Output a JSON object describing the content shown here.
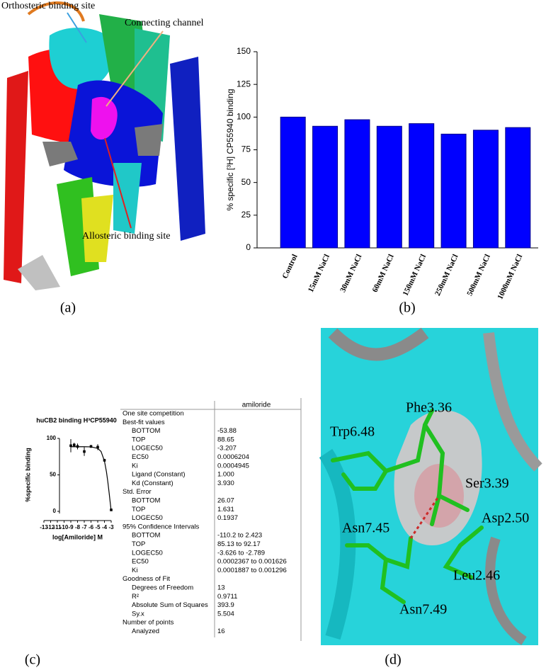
{
  "chart_data": [
    {
      "type": "bar",
      "ylabel": "% specific [³H] CP55940 binding",
      "categories": [
        "Control",
        "15mM NaCl",
        "30mM NaCl",
        "60mM NaCl",
        "150mM NaCl",
        "250mM NaCl",
        "500mM NaCl",
        "1000mM NaCl"
      ],
      "values": [
        100,
        93,
        98,
        93,
        95,
        87,
        90,
        92
      ],
      "color": "#0000ff",
      "ylim": [
        0,
        150
      ],
      "yticks": [
        0,
        25,
        50,
        75,
        100,
        125,
        150
      ]
    },
    {
      "type": "line",
      "title": "huCB2 binding H³CP55940",
      "xlabel": "log[Amiloride] M",
      "ylabel": "%specific binding",
      "xlim": [
        -13,
        -3
      ],
      "xticks": [
        -13,
        -12,
        -11,
        -10,
        -9,
        -8,
        -7,
        -6,
        -5,
        -4,
        -3
      ],
      "ylim": [
        0,
        100
      ],
      "yticks": [
        0,
        50,
        100
      ],
      "color": "#000000",
      "series": [
        {
          "style": "points",
          "x": [
            -9,
            -8.5,
            -8,
            -7,
            -6,
            -5,
            -4,
            -3
          ],
          "values": [
            90,
            91,
            89,
            82,
            89,
            88,
            70,
            2
          ],
          "errors": [
            9,
            3,
            4,
            6,
            2,
            4,
            2,
            1
          ]
        },
        {
          "style": "line",
          "x": [
            -9,
            -8,
            -7,
            -6,
            -5,
            -4.5,
            -4,
            -3.7,
            -3.5,
            -3.3,
            -3.2,
            -3
          ],
          "values": [
            88.6,
            88.6,
            88.6,
            88.4,
            86.4,
            82,
            68.9,
            54,
            40.6,
            25,
            16.7,
            0.7
          ]
        }
      ]
    }
  ],
  "panel_a": {
    "labels": [
      "Orthosteric binding site",
      "Connecting channel",
      "Allosteric binding site"
    ],
    "caption": "(a)"
  },
  "panel_b": {
    "caption": "(b)"
  },
  "panel_c": {
    "caption": "(c)",
    "table": {
      "header": "amiloride",
      "sections": [
        {
          "title": "One site competition",
          "rows": []
        },
        {
          "title": "Best-fit values",
          "rows": [
            [
              "BOTTOM",
              "-53.88"
            ],
            [
              "TOP",
              "88.65"
            ],
            [
              "LOGEC50",
              "-3.207"
            ],
            [
              "EC50",
              "0.0006204"
            ],
            [
              "Ki",
              "0.0004945"
            ],
            [
              "Ligand (Constant)",
              "1.000"
            ],
            [
              "Kd (Constant)",
              "3.930"
            ]
          ]
        },
        {
          "title": "Std. Error",
          "rows": [
            [
              "BOTTOM",
              "26.07"
            ],
            [
              "TOP",
              "1.631"
            ],
            [
              "LOGEC50",
              "0.1937"
            ]
          ]
        },
        {
          "title": "95% Confidence Intervals",
          "rows": [
            [
              "BOTTOM",
              "-110.2 to 2.423"
            ],
            [
              "TOP",
              "85.13 to 92.17"
            ],
            [
              "LOGEC50",
              "-3.626 to -2.789"
            ],
            [
              "EC50",
              "0.0002367 to 0.001626"
            ],
            [
              "Ki",
              "0.0001887 to 0.001296"
            ]
          ]
        },
        {
          "title": "Goodness of Fit",
          "rows": [
            [
              "Degrees of Freedom",
              "13"
            ],
            [
              "R²",
              "0.9711"
            ],
            [
              "Absolute Sum of Squares",
              "393.9"
            ],
            [
              "Sy.x",
              "5.504"
            ]
          ]
        },
        {
          "title": "Number of points",
          "rows": [
            [
              "Analyzed",
              "16"
            ]
          ]
        }
      ]
    }
  },
  "panel_d": {
    "labels": [
      "Phe3.36",
      "Trp6.48",
      "Ser3.39",
      "Asp2.50",
      "Asn7.45",
      "Leu2.46",
      "Asn7.49"
    ],
    "caption": "(d)"
  }
}
